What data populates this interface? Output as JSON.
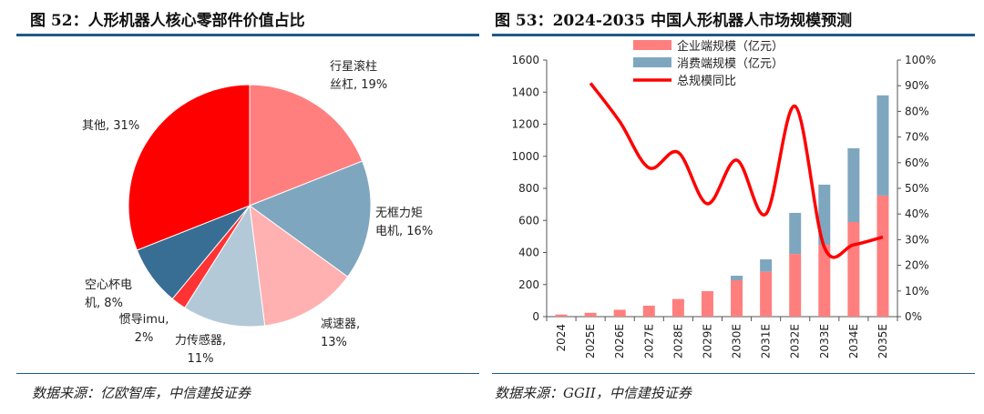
{
  "left": {
    "title": "图 52：人形机器人核心零部件价值占比",
    "source": "数据来源：亿欧智库，中信建投证券"
  },
  "right": {
    "title": "图 53：2024-2035 中国人形机器人市场规模预测",
    "source": "数据来源：GGII，中信建投证券"
  },
  "chart_data": [
    {
      "type": "pie",
      "title": "人形机器人核心零部件价值占比",
      "slices": [
        {
          "label": "行星滚柱丝杠",
          "value": 19,
          "color": "#FF7F7F"
        },
        {
          "label": "无框力矩电机",
          "value": 16,
          "color": "#7FA6BF"
        },
        {
          "label": "减速器",
          "value": 13,
          "color": "#FFB0B0"
        },
        {
          "label": "力传感器",
          "value": 11,
          "color": "#B4C9D8"
        },
        {
          "label": "惯导imu",
          "value": 2,
          "color": "#FF3333"
        },
        {
          "label": "空心杯电机",
          "value": 8,
          "color": "#386E94"
        },
        {
          "label": "其他",
          "value": 31,
          "color": "#FF0000"
        }
      ],
      "label_format": "{label}, {value}%"
    },
    {
      "type": "bar",
      "stacked": true,
      "title": "2024-2035 中国人形机器人市场规模预测",
      "categories": [
        "2024",
        "2025E",
        "2026E",
        "2027E",
        "2028E",
        "2029E",
        "2030E",
        "2031E",
        "2032E",
        "2033E",
        "2034E",
        "2035E"
      ],
      "series": [
        {
          "name": "企业端规模（亿元）",
          "color": "#FF7F7F",
          "values": [
            13,
            24,
            43,
            68,
            110,
            159,
            227,
            280,
            391,
            448,
            590,
            755
          ]
        },
        {
          "name": "消费端规模（亿元）",
          "color": "#7FA6BF",
          "values": [
            0,
            0,
            0,
            0,
            0,
            0,
            28,
            77,
            256,
            375,
            460,
            625
          ]
        }
      ],
      "line_series": {
        "name": "总规模同比",
        "color": "#FF0000",
        "axis": "right",
        "values": [
          null,
          91,
          76,
          58,
          64,
          44,
          61,
          40,
          82,
          27,
          28,
          31
        ]
      },
      "ylim": [
        0,
        1600
      ],
      "yticks": [
        0,
        200,
        400,
        600,
        800,
        1000,
        1200,
        1400,
        1600
      ],
      "y2lim": [
        0,
        100
      ],
      "y2ticks": [
        "0%",
        "10%",
        "20%",
        "30%",
        "40%",
        "50%",
        "60%",
        "70%",
        "80%",
        "90%",
        "100%"
      ],
      "legend": "top-center",
      "grid": false
    }
  ]
}
